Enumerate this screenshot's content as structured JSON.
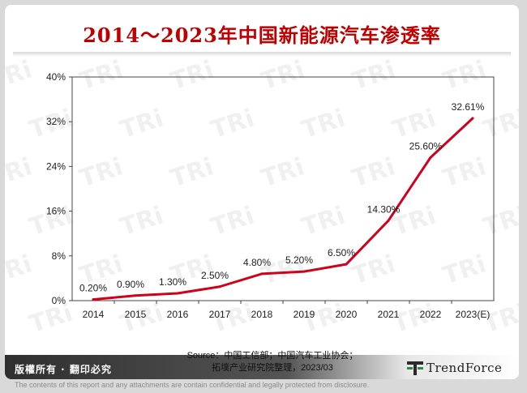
{
  "chart_data": {
    "type": "line",
    "title": "2014～2023年中国新能源汽车渗透率",
    "xlabel": "",
    "ylabel": "",
    "categories": [
      "2014",
      "2015",
      "2016",
      "2017",
      "2018",
      "2019",
      "2020",
      "2021",
      "2022",
      "2023(E)"
    ],
    "values": [
      0.2,
      0.9,
      1.3,
      2.5,
      4.8,
      5.2,
      6.5,
      14.3,
      25.6,
      32.61
    ],
    "data_labels": [
      "0.20%",
      "0.90%",
      "1.30%",
      "2.50%",
      "4.80%",
      "5.20%",
      "6.50%",
      "14.30%",
      "25.60%",
      "32.61%"
    ],
    "ylim": [
      0,
      40
    ],
    "yticks": [
      0,
      8,
      16,
      24,
      32,
      40
    ],
    "ytick_labels": [
      "0%",
      "8%",
      "16%",
      "24%",
      "32%",
      "40%"
    ],
    "grid": false,
    "line_color": "#d0021b"
  },
  "footer": {
    "copyright": "版權所有 · 翻印必究",
    "source_line1": "Source：中国工信部；中国汽车工业协会；",
    "source_line2": "拓墣产业研究院整理，2023/03",
    "logo_text": "TrendForce",
    "disclaimer": "The contents of this report and any attachments are contain confidential and legally protected from disclosure."
  }
}
